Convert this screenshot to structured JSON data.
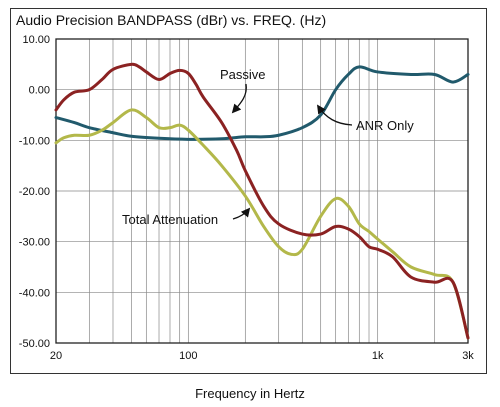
{
  "chart_data": {
    "type": "line",
    "title": "Audio Precision BANDPASS (dBr) vs. FREQ. (Hz)",
    "xlabel": "Frequency in Hertz",
    "ylabel": "",
    "xscale": "log",
    "xlim": [
      20,
      3000
    ],
    "ylim": [
      -50,
      10
    ],
    "x_ticks": [
      {
        "value": 20,
        "label": "20"
      },
      {
        "value": 100,
        "label": "100"
      },
      {
        "value": 1000,
        "label": "1k"
      },
      {
        "value": 3000,
        "label": "3k"
      }
    ],
    "y_ticks": [
      {
        "value": 10,
        "label": "10.00"
      },
      {
        "value": 0,
        "label": "0.00"
      },
      {
        "value": -10,
        "label": "-10.00"
      },
      {
        "value": -20,
        "label": "-20.00"
      },
      {
        "value": -30,
        "label": "-30.00"
      },
      {
        "value": -40,
        "label": "-40.00"
      },
      {
        "value": -50,
        "label": "-50.00"
      }
    ],
    "grid": true,
    "colors": {
      "passive": "#8b2222",
      "anr_only": "#215a6c",
      "total_attenuation": "#b3b84a"
    },
    "series": [
      {
        "key": "passive",
        "name": "Passive",
        "color": "#8b2222",
        "x": [
          20,
          22,
          25,
          30,
          35,
          40,
          50,
          55,
          60,
          70,
          80,
          90,
          100,
          110,
          120,
          150,
          180,
          200,
          250,
          300,
          400,
          500,
          600,
          700,
          800,
          900,
          1000,
          1200,
          1500,
          2000,
          2500,
          3000
        ],
        "y": [
          -4,
          -2,
          -0.5,
          0,
          2,
          4,
          5,
          4.5,
          3.5,
          2,
          3.2,
          3.8,
          3.2,
          1,
          -1.5,
          -6.5,
          -12,
          -16,
          -23,
          -26.5,
          -28.5,
          -28.5,
          -27,
          -27.5,
          -29,
          -31,
          -31.5,
          -33,
          -37,
          -38,
          -38,
          -49
        ]
      },
      {
        "key": "anr_only",
        "name": "ANR Only",
        "color": "#215a6c",
        "x": [
          20,
          25,
          30,
          40,
          50,
          70,
          100,
          150,
          200,
          250,
          300,
          400,
          500,
          600,
          700,
          800,
          1000,
          1500,
          2000,
          2500,
          3000
        ],
        "y": [
          -5.5,
          -6.5,
          -7.5,
          -8.5,
          -9.2,
          -9.6,
          -9.8,
          -9.7,
          -9.3,
          -9.3,
          -9,
          -7.5,
          -5,
          0,
          3,
          4.5,
          3.5,
          3,
          3,
          1.5,
          3
        ]
      },
      {
        "key": "total_attenuation",
        "name": "Total Attenuation",
        "color": "#b3b84a",
        "x": [
          20,
          22,
          25,
          30,
          35,
          40,
          50,
          60,
          70,
          80,
          90,
          100,
          120,
          150,
          200,
          250,
          300,
          350,
          400,
          500,
          600,
          700,
          800,
          900,
          1000,
          1200,
          1500,
          2000,
          2500,
          3000
        ],
        "y": [
          -10.5,
          -9.5,
          -9,
          -9,
          -8,
          -6.5,
          -4,
          -5.5,
          -7.5,
          -7.5,
          -7,
          -8,
          -11,
          -15,
          -21,
          -27,
          -31,
          -32.5,
          -31.5,
          -25,
          -21.5,
          -23,
          -26.5,
          -28,
          -29.5,
          -32,
          -35,
          -36.5,
          -38,
          -49
        ]
      }
    ],
    "annotations": [
      {
        "series": "passive",
        "text": "Passive"
      },
      {
        "series": "anr_only",
        "text": "ANR Only"
      },
      {
        "series": "total_attenuation",
        "text": "Total Attenuation"
      }
    ]
  }
}
